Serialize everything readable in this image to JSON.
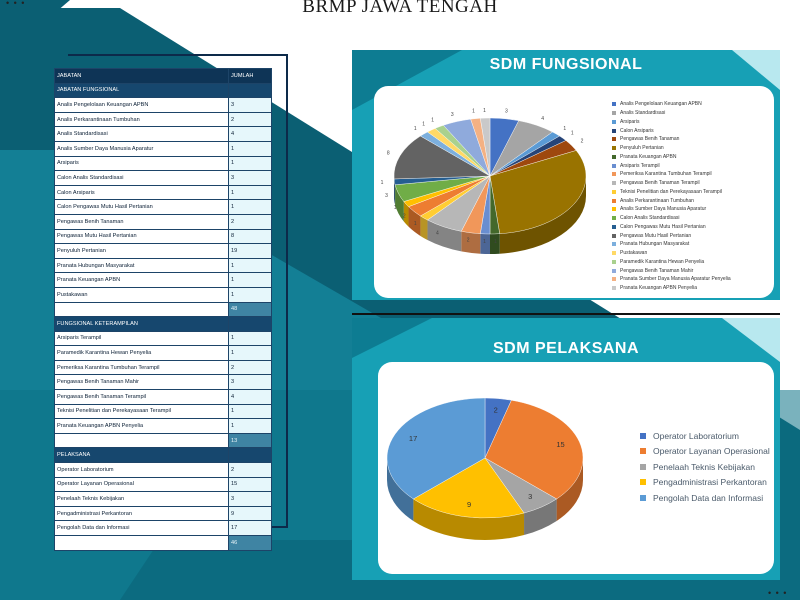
{
  "page": {
    "title": "BRMP JAWA TENGAH",
    "corner_dots": "• • •"
  },
  "colors": {
    "teal": "#17a0b5",
    "dark_teal": "#0b5f73",
    "navy": "#0e3456",
    "light_cyan": "#d9f3f7"
  },
  "table": {
    "headers": [
      "JABATAN",
      "JUMLAH"
    ],
    "sections": [
      {
        "name": "JABATAN FUNGSIONAL",
        "rows": [
          [
            "Analis Pengelolaan Keuangan APBN",
            "3"
          ],
          [
            "Analis Perkarantinaan Tumbuhan",
            "2"
          ],
          [
            "Analis Standardisasi",
            "4"
          ],
          [
            "Analis Sumber Daya Manusia Aparatur",
            "1"
          ],
          [
            "Arsiparis",
            "1"
          ],
          [
            "Calon Analis Standardisasi",
            "3"
          ],
          [
            "Calon Arsiparis",
            "1"
          ],
          [
            "Calon Pengawas Mutu Hasil Pertanian",
            "1"
          ],
          [
            "Pengawas Benih Tanaman",
            "2"
          ],
          [
            "Pengawas Mutu Hasil Pertanian",
            "8"
          ],
          [
            "Penyuluh Pertanian",
            "19"
          ],
          [
            "Pranata Hubungan Masyarakat",
            "1"
          ],
          [
            "Pranata Keuangan APBN",
            "1"
          ],
          [
            "Pustakawan",
            "1"
          ]
        ],
        "total": "48"
      },
      {
        "name": "FUNGSIONAL KETERAMPILAN",
        "rows": [
          [
            "Arsiparis Terampil",
            "1"
          ],
          [
            "Paramedik Karantina Hewan Penyelia",
            "1"
          ],
          [
            "Pemeriksa Karantina Tumbuhan Terampil",
            "2"
          ],
          [
            "Pengawas Benih Tanaman Mahir",
            "3"
          ],
          [
            "Pengawas Benih Tanaman Terampil",
            "4"
          ],
          [
            "Teknisi Penelitian dan Perekayasaan Terampil",
            "1"
          ],
          [
            "Pranata Keuangan APBN Penyelia",
            "1"
          ]
        ],
        "total": "13"
      },
      {
        "name": "PELAKSANA",
        "rows": [
          [
            "Operator Laboratorium",
            "2"
          ],
          [
            "Operator Layanan Operasional",
            "15"
          ],
          [
            "Penelaah Teknis Kebijakan",
            "3"
          ],
          [
            "Pengadministrasi Perkantoran",
            "9"
          ],
          [
            "Pengolah Data dan Informasi",
            "17"
          ]
        ],
        "total": "46"
      }
    ]
  },
  "panels": {
    "top_title": "SDM FUNGSIONAL",
    "bottom_title": "SDM PELAKSANA"
  },
  "chart_data": [
    {
      "type": "pie",
      "title": "SDM FUNGSIONAL",
      "style": "3d",
      "legend_position": "right",
      "labels": [
        "Analis Pengelolaan Keuangan APBN",
        "Analis Standardisasi",
        "Arsiparis",
        "Calon Arsiparis",
        "Pengawas Benih Tanaman",
        "Penyuluh Pertanian",
        "Pranata Keuangan APBN",
        "Arsiparis Terampil",
        "Pemeriksa Karantina Tumbuhan Terampil",
        "Pengawas Benih Tanaman Terampil",
        "Teknisi Penelitian dan Perekayasaan Terampil",
        "Analis Perkarantinaan Tumbuhan",
        "Analis Sumber Daya Manusia Aparatur",
        "Calon Analis Standardisasi",
        "Calon Pengawas Mutu Hasil Pertanian",
        "Pengawas Mutu Hasil Pertanian",
        "Pranata Hubungan Masyarakat",
        "Pustakawan",
        "Paramedik Karantina Hewan Penyelia",
        "Pengawas Benih Tanaman Mahir",
        "Pranata Sumber Daya Manusia Aparatur Penyelia",
        "Pranata Keuangan APBN Penyelia"
      ],
      "values": [
        3,
        4,
        1,
        1,
        2,
        19,
        1,
        1,
        2,
        4,
        1,
        2,
        1,
        3,
        1,
        8,
        1,
        1,
        1,
        3,
        1,
        1
      ],
      "colors": [
        "#4472c4",
        "#a5a5a5",
        "#5b9bd5",
        "#264478",
        "#9e480e",
        "#997300",
        "#43682b",
        "#698ed0",
        "#f1975a",
        "#b7b7b7",
        "#ffcd33",
        "#ed7d31",
        "#ffc000",
        "#70ad47",
        "#255e91",
        "#636363",
        "#7cafdd",
        "#ffd966",
        "#a9d18e",
        "#8faadc",
        "#f4b183",
        "#c9c9c9"
      ],
      "data_labels": [
        "3",
        "4",
        "1",
        "1",
        "2",
        "",
        "1",
        "1",
        "2",
        "4",
        "1",
        "2",
        "1",
        "3",
        "1",
        "8",
        "1",
        "1",
        "1",
        "3",
        "1",
        "1"
      ]
    },
    {
      "type": "pie",
      "title": "SDM PELAKSANA",
      "style": "3d",
      "legend_position": "right",
      "labels": [
        "Operator Laboratorium",
        "Operator Layanan Operasional",
        "Penelaah Teknis Kebijakan",
        "Pengadministrasi Perkantoran",
        "Pengolah Data dan Informasi"
      ],
      "values": [
        2,
        15,
        3,
        9,
        17
      ],
      "colors": [
        "#4472c4",
        "#ed7d31",
        "#a5a5a5",
        "#ffc000",
        "#5b9bd5"
      ]
    }
  ]
}
